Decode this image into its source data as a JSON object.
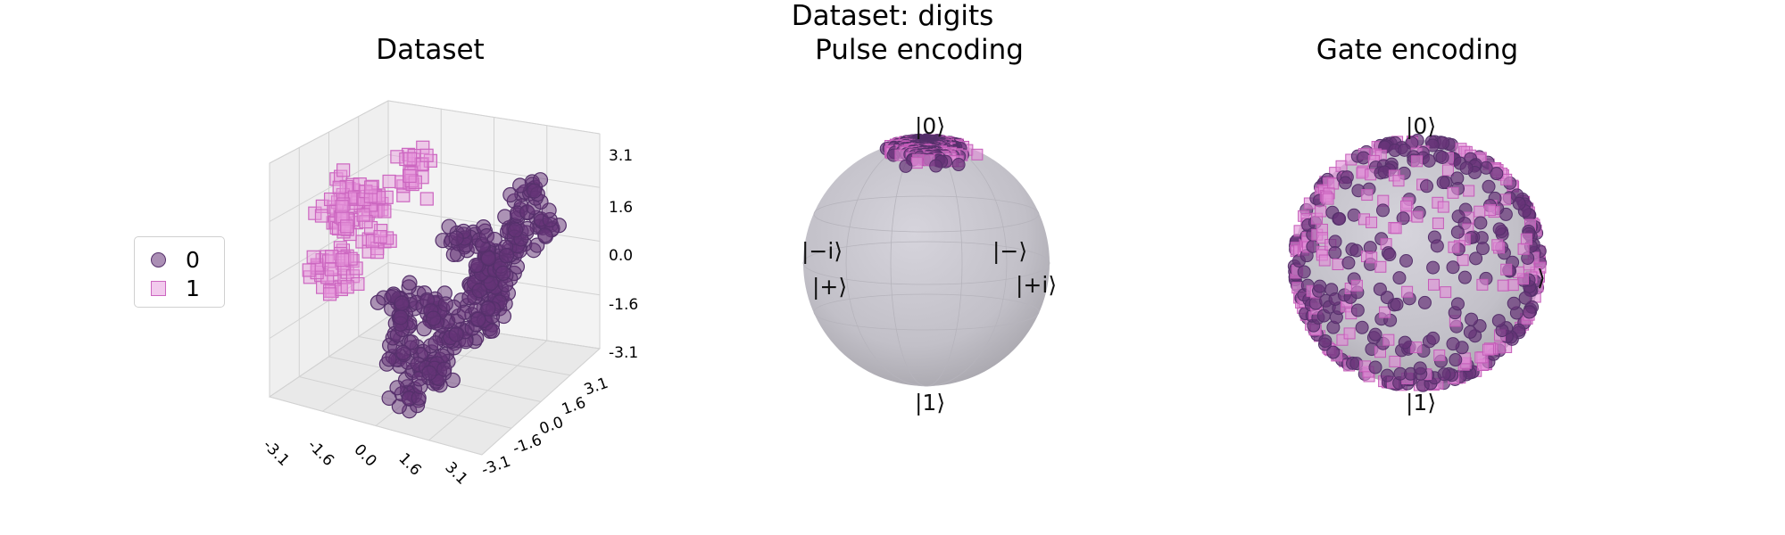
{
  "figure_title": "Dataset: digits",
  "legend": [
    {
      "label": "0",
      "marker": "circle",
      "color": "#663378"
    },
    {
      "label": "1",
      "marker": "square",
      "color": "#e696dc"
    }
  ],
  "chart_data": [
    {
      "type": "scatter",
      "projection": "3d",
      "title": "Dataset",
      "series_labels": [
        "0",
        "1"
      ],
      "x_ticks": [
        "-3.1",
        "-1.6",
        "0.0",
        "1.6",
        "3.1"
      ],
      "y_ticks": [
        "-3.1",
        "-1.6",
        "0.0",
        "1.6",
        "3.1"
      ],
      "z_ticks": [
        "-3.1",
        "-1.6",
        "0.0",
        "1.6",
        "3.1"
      ],
      "xlim": [
        -3.1,
        3.1
      ],
      "ylim": [
        -3.1,
        3.1
      ],
      "zlim": [
        -3.1,
        3.1
      ],
      "grid": true,
      "legend_position": "left",
      "series": [
        {
          "label": "0",
          "marker": "circle",
          "color": "#663378",
          "points": [
            [
              0.2,
              -0.5,
              -1.0
            ],
            [
              1.0,
              0.3,
              -0.6
            ],
            [
              0.5,
              -1.2,
              -2.0
            ],
            [
              -0.3,
              0.8,
              -1.5
            ],
            [
              1.6,
              -0.4,
              0.4
            ],
            [
              0.9,
              1.2,
              -0.2
            ],
            [
              -0.8,
              -0.2,
              -2.4
            ],
            [
              0.4,
              0.5,
              0.6
            ],
            [
              1.8,
              0.9,
              1.2
            ],
            [
              2.2,
              0.2,
              0.8
            ],
            [
              -0.5,
              -0.9,
              -0.7
            ],
            [
              1.3,
              -1.1,
              -1.2
            ],
            [
              0.0,
              0.0,
              -2.8
            ],
            [
              0.7,
              1.5,
              0.2
            ],
            [
              1.9,
              1.6,
              2.0
            ],
            [
              2.5,
              1.0,
              1.4
            ],
            [
              -1.2,
              0.4,
              -1.8
            ],
            [
              0.3,
              -1.8,
              -2.6
            ],
            [
              1.1,
              0.7,
              -1.4
            ],
            [
              2.0,
              -0.5,
              -0.2
            ]
          ]
        },
        {
          "label": "1",
          "marker": "square",
          "color": "#e696dc",
          "points": [
            [
              -2.6,
              -0.5,
              0.8
            ],
            [
              -2.8,
              0.2,
              1.2
            ],
            [
              -2.2,
              -1.0,
              0.2
            ],
            [
              -2.9,
              0.6,
              0.4
            ],
            [
              -2.4,
              -0.2,
              1.6
            ],
            [
              -2.0,
              0.5,
              0.9
            ],
            [
              -1.6,
              -0.6,
              0.6
            ],
            [
              -2.7,
              -1.3,
              -0.2
            ],
            [
              -1.2,
              0.8,
              1.9
            ],
            [
              -0.8,
              0.3,
              2.6
            ],
            [
              -2.3,
              1.0,
              1.0
            ],
            [
              -1.9,
              -1.5,
              -0.5
            ]
          ]
        }
      ]
    },
    {
      "type": "scatter",
      "projection": "bloch-sphere",
      "title": "Pulse encoding",
      "axis_labels": {
        "top": "|0⟩",
        "bottom": "|1⟩",
        "minus_i": "|−i⟩",
        "plus": "|+⟩",
        "minus": "|−⟩",
        "plus_i": "|+i⟩"
      },
      "series_labels": [
        "0",
        "1"
      ],
      "distribution": "clustered near |0⟩ pole"
    },
    {
      "type": "scatter",
      "projection": "bloch-sphere",
      "title": "Gate encoding",
      "axis_labels": {
        "top": "|0⟩",
        "bottom": "|1⟩",
        "right": "⟩"
      },
      "series_labels": [
        "0",
        "1"
      ],
      "distribution": "spread over sphere surface"
    }
  ]
}
